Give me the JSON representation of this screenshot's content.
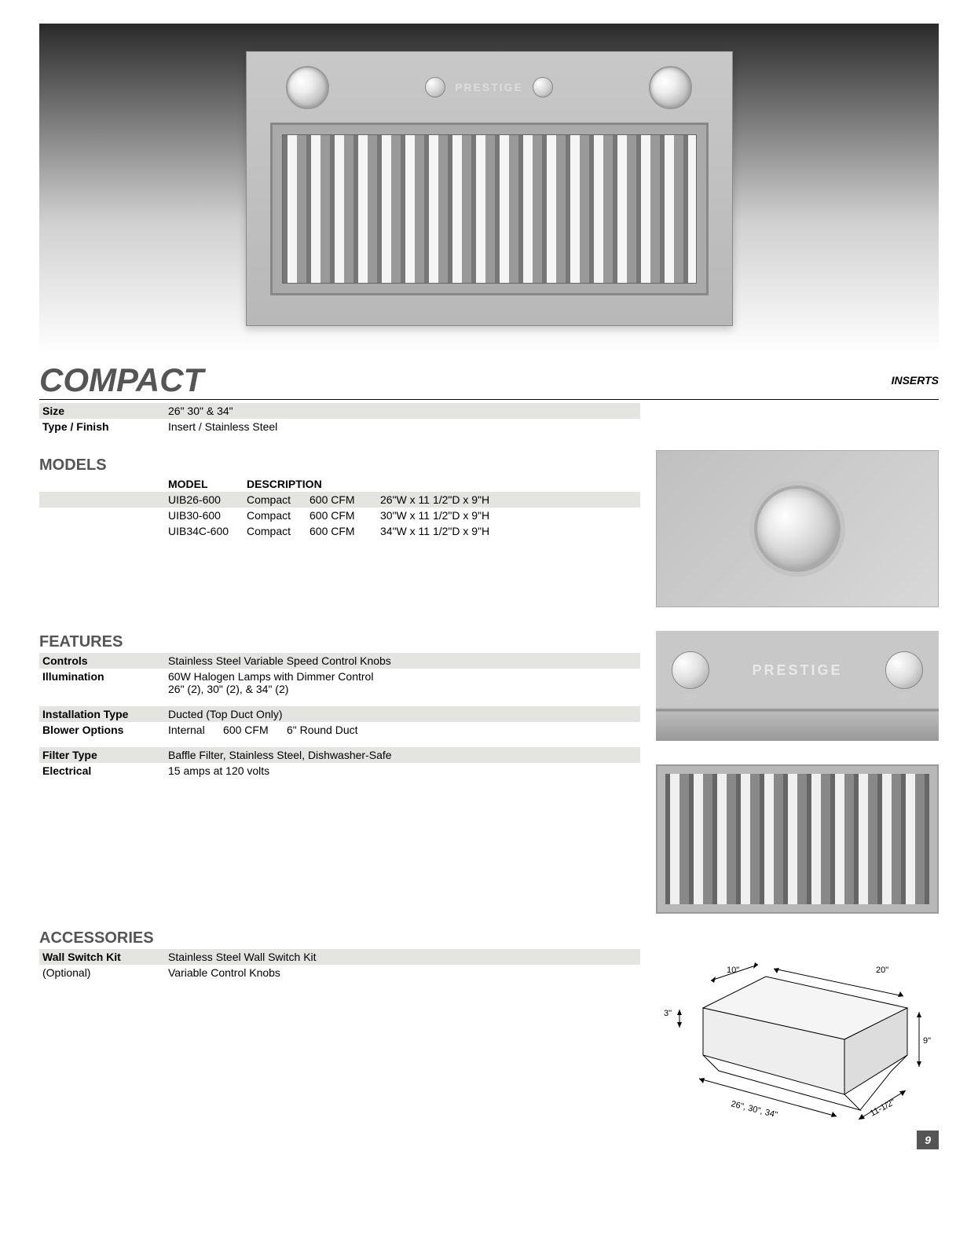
{
  "title": "COMPACT",
  "category": "INSERTS",
  "brand": "PRESTIGE",
  "size_label": "Size",
  "size_value": "26\" 30\" & 34\"",
  "finish_label": "Type / Finish",
  "finish_value": "Insert / Stainless Steel",
  "models_heading": "MODELS",
  "models_header": {
    "model": "MODEL",
    "desc": "DESCRIPTION"
  },
  "models": [
    {
      "model": "UIB26-600",
      "type": "Compact",
      "cfm": "600 CFM",
      "dims": "26\"W x 11 1/2\"D x 9\"H"
    },
    {
      "model": "UIB30-600",
      "type": "Compact",
      "cfm": "600 CFM",
      "dims": "30\"W x 11 1/2\"D x 9\"H"
    },
    {
      "model": "UIB34C-600",
      "type": "Compact",
      "cfm": "600 CFM",
      "dims": "34\"W x 11 1/2\"D x 9\"H"
    }
  ],
  "features_heading": "FEATURES",
  "features": [
    {
      "label": "Controls",
      "value": "Stainless Steel Variable Speed Control Knobs",
      "shade": true
    },
    {
      "label": "Illumination",
      "value": "60W Halogen Lamps with Dimmer Control",
      "value2": "26\" (2), 30\" (2), & 34\" (2)",
      "shade": false
    },
    {
      "label": "Installation Type",
      "value": "Ducted (Top Duct Only)",
      "shade": true
    },
    {
      "label": "Blower Options",
      "value": "Internal      600 CFM      6\" Round Duct",
      "shade": false
    },
    {
      "label": "Filter Type",
      "value": "Baffle Filter, Stainless Steel, Dishwasher-Safe",
      "shade": true
    },
    {
      "label": "Electrical",
      "value": "15 amps at 120 volts",
      "shade": false
    }
  ],
  "accessories_heading": "ACCESSORIES",
  "acc_label": "Wall Switch Kit",
  "acc_sub": "(Optional)",
  "acc_val1": "Stainless Steel Wall Switch Kit",
  "acc_val2": "Variable Control Knobs",
  "diagram": {
    "top_front": "10\"",
    "top_back": "20\"",
    "left_h": "3\"",
    "right_h": "9\"",
    "width": "26\", 30\", 34\"",
    "depth": "11-1/2\""
  },
  "page_number": "9",
  "colors": {
    "heading": "#555555",
    "shade_bg": "#e4e4e0",
    "steel_light": "#d8d8d8",
    "steel_dark": "#b8b8b8"
  }
}
